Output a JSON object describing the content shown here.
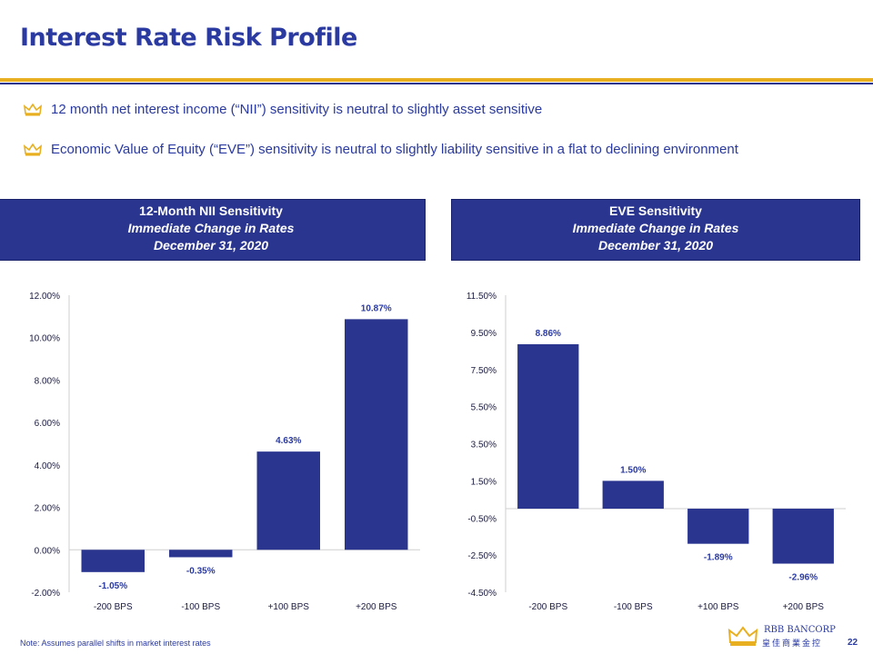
{
  "title": "Interest Rate Risk Profile",
  "bullets": [
    "12 month net interest income (“NII”) sensitivity is neutral to slightly asset sensitive",
    "Economic Value of Equity (“EVE”) sensitivity is neutral to slightly liability sensitive in a flat to declining environment"
  ],
  "panels": [
    {
      "title": "12-Month NII Sensitivity",
      "sub1": "Immediate Change in Rates",
      "sub2": "December 31, 2020"
    },
    {
      "title": "EVE Sensitivity",
      "sub1": "Immediate Change in Rates",
      "sub2": "December 31, 2020"
    }
  ],
  "colors": {
    "bar": "#2a3590",
    "gold": "#e8b020",
    "text": "#2a3aa0"
  },
  "chart_data": [
    {
      "type": "bar",
      "title": "12-Month NII Sensitivity",
      "categories": [
        "-200 BPS",
        "-100 BPS",
        "+100 BPS",
        "+200 BPS"
      ],
      "values": [
        -1.05,
        -0.35,
        4.63,
        10.87
      ],
      "labels": [
        "-1.05%",
        "-0.35%",
        "4.63%",
        "10.87%"
      ],
      "ylim": [
        -2,
        12
      ],
      "yticks": [
        -2,
        0,
        2,
        4,
        6,
        8,
        10,
        12
      ],
      "ytick_labels": [
        "-2.00%",
        "0.00%",
        "2.00%",
        "4.00%",
        "6.00%",
        "8.00%",
        "10.00%",
        "12.00%"
      ]
    },
    {
      "type": "bar",
      "title": "EVE Sensitivity",
      "categories": [
        "-200 BPS",
        "-100 BPS",
        "+100 BPS",
        "+200 BPS"
      ],
      "values": [
        8.86,
        1.5,
        -1.89,
        -2.96
      ],
      "labels": [
        "8.86%",
        "1.50%",
        "-1.89%",
        "-2.96%"
      ],
      "ylim": [
        -4.5,
        11.5
      ],
      "yticks": [
        -4.5,
        -2.5,
        -0.5,
        1.5,
        3.5,
        5.5,
        7.5,
        9.5,
        11.5
      ],
      "ytick_labels": [
        "-4.50%",
        "-2.50%",
        "-0.50%",
        "1.50%",
        "3.50%",
        "5.50%",
        "7.50%",
        "9.50%",
        "11.50%"
      ]
    }
  ],
  "note": "Note: Assumes parallel shifts in market interest rates",
  "logo": {
    "name": "RBB BANCORP",
    "cn": "皇佳商業金控"
  },
  "page_number": "22"
}
